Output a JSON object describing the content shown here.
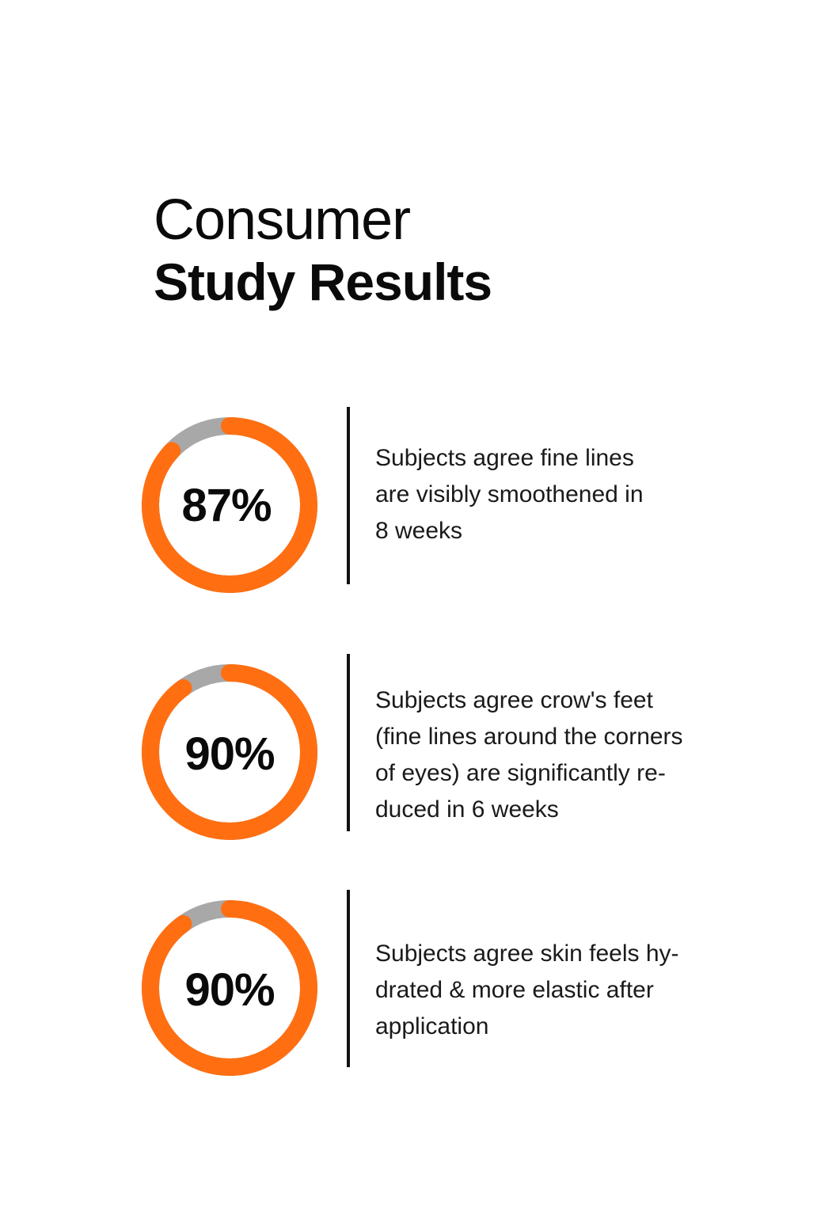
{
  "heading": {
    "line1": "Consumer",
    "line2": "Study Results"
  },
  "colors": {
    "accent": "#ff6f12",
    "track": "#a8a8a8",
    "text": "#0a0a0a"
  },
  "chart_data": [
    {
      "type": "pie",
      "value": 87,
      "label": "87%",
      "description_lines": [
        "Subjects agree fine lines",
        "are visibly smoothened in",
        "8 weeks"
      ]
    },
    {
      "type": "pie",
      "value": 90,
      "label": "90%",
      "description_lines": [
        "Subjects agree crow's feet",
        "(fine lines around the corners",
        "of eyes) are significantly re-",
        "duced in 6 weeks"
      ]
    },
    {
      "type": "pie",
      "value": 90,
      "label": "90%",
      "description_lines": [
        "Subjects agree skin feels hy-",
        "drated & more elastic after",
        "application"
      ]
    }
  ]
}
